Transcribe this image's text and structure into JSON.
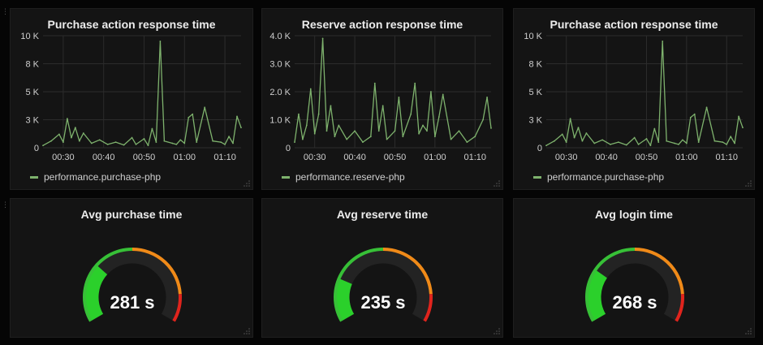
{
  "colors": {
    "series": "#7eb26d",
    "gauge_green": "#37c037",
    "gauge_orange": "#f08a18",
    "gauge_red": "#e0241d",
    "gauge_fill": "#2bd02b",
    "gauge_track": "#232323"
  },
  "icons": {
    "row_handle": "drag-handle-icon",
    "resize": "resize-grip-icon"
  },
  "panels": {
    "graph1": {
      "title": "Purchase action response time",
      "legend": "performance.purchase-php"
    },
    "graph2": {
      "title": "Reserve action response time",
      "legend": "performance.reserve-php"
    },
    "graph3": {
      "title": "Purchase action response time",
      "legend": "performance.purchase-php"
    },
    "gauge1": {
      "title": "Avg purchase time",
      "value_text": "281 s",
      "fill_fraction": 0.3
    },
    "gauge2": {
      "title": "Avg reserve time",
      "value_text": "235 s",
      "fill_fraction": 0.22
    },
    "gauge3": {
      "title": "Avg login time",
      "value_text": "268 s",
      "fill_fraction": 0.27
    }
  },
  "chart_data": [
    {
      "type": "line",
      "title": "Purchase action response time",
      "series": [
        {
          "name": "performance.purchase-php",
          "x": [
            "00:25",
            "00:27",
            "00:29",
            "00:30",
            "00:31",
            "00:32",
            "00:33",
            "00:34",
            "00:35",
            "00:37",
            "00:39",
            "00:41",
            "00:43",
            "00:45",
            "00:47",
            "00:48",
            "00:50",
            "00:51",
            "00:52",
            "00:53",
            "00:54",
            "00:55",
            "00:57",
            "00:58",
            "00:59",
            "01:00",
            "01:01",
            "01:02",
            "01:03",
            "01:05",
            "01:07",
            "01:09",
            "01:10",
            "01:11",
            "01:12",
            "01:13",
            "01:14"
          ],
          "y": [
            200,
            600,
            1200,
            500,
            2600,
            900,
            1800,
            600,
            1300,
            400,
            700,
            300,
            500,
            250,
            900,
            300,
            800,
            200,
            1700,
            500,
            9500,
            600,
            400,
            300,
            700,
            400,
            2700,
            3000,
            500,
            3600,
            600,
            500,
            300,
            1000,
            400,
            2800,
            1800
          ]
        }
      ],
      "xticks": [
        "00:30",
        "00:40",
        "00:50",
        "01:00",
        "01:10"
      ],
      "yticks": [
        "0",
        "3 K",
        "5 K",
        "8 K",
        "10 K"
      ],
      "ylim": [
        0,
        10000
      ],
      "grid": true,
      "legend": "bottom-left"
    },
    {
      "type": "line",
      "title": "Reserve action response time",
      "series": [
        {
          "name": "performance.reserve-php",
          "x": [
            "00:25",
            "00:26",
            "00:27",
            "00:28",
            "00:29",
            "00:30",
            "00:31",
            "00:32",
            "00:33",
            "00:34",
            "00:35",
            "00:36",
            "00:38",
            "00:40",
            "00:42",
            "00:44",
            "00:45",
            "00:46",
            "00:47",
            "00:48",
            "00:50",
            "00:51",
            "00:52",
            "00:54",
            "00:55",
            "00:56",
            "00:57",
            "00:58",
            "00:59",
            "01:00",
            "01:01",
            "01:02",
            "01:04",
            "01:06",
            "01:08",
            "01:10",
            "01:12",
            "01:13",
            "01:14"
          ],
          "y": [
            200,
            1200,
            300,
            800,
            2100,
            500,
            1200,
            3900,
            600,
            1500,
            400,
            800,
            300,
            600,
            200,
            400,
            2300,
            600,
            1500,
            300,
            600,
            1800,
            400,
            1200,
            2300,
            500,
            800,
            600,
            2000,
            400,
            1100,
            1900,
            300,
            600,
            200,
            400,
            1000,
            1800,
            700
          ]
        }
      ],
      "xticks": [
        "00:30",
        "00:40",
        "00:50",
        "01:00",
        "01:10"
      ],
      "yticks": [
        "0",
        "1.0 K",
        "2.0 K",
        "3.0 K",
        "4.0 K"
      ],
      "ylim": [
        0,
        4000
      ],
      "grid": true,
      "legend": "bottom-left"
    },
    {
      "type": "line",
      "title": "Purchase action response time",
      "series": [
        {
          "name": "performance.purchase-php",
          "x": [
            "00:25",
            "00:27",
            "00:29",
            "00:30",
            "00:31",
            "00:32",
            "00:33",
            "00:34",
            "00:35",
            "00:37",
            "00:39",
            "00:41",
            "00:43",
            "00:45",
            "00:47",
            "00:48",
            "00:50",
            "00:51",
            "00:52",
            "00:53",
            "00:54",
            "00:55",
            "00:57",
            "00:58",
            "00:59",
            "01:00",
            "01:01",
            "01:02",
            "01:03",
            "01:05",
            "01:07",
            "01:09",
            "01:10",
            "01:11",
            "01:12",
            "01:13",
            "01:14"
          ],
          "y": [
            200,
            600,
            1200,
            500,
            2600,
            900,
            1800,
            600,
            1300,
            400,
            700,
            300,
            500,
            250,
            900,
            300,
            800,
            200,
            1700,
            500,
            9500,
            600,
            400,
            300,
            700,
            400,
            2700,
            3000,
            500,
            3600,
            600,
            500,
            300,
            1000,
            400,
            2800,
            1800
          ]
        }
      ],
      "xticks": [
        "00:30",
        "00:40",
        "00:50",
        "01:00",
        "01:10"
      ],
      "yticks": [
        "0",
        "3 K",
        "5 K",
        "8 K",
        "10 K"
      ],
      "ylim": [
        0,
        10000
      ],
      "grid": true,
      "legend": "bottom-left"
    }
  ]
}
